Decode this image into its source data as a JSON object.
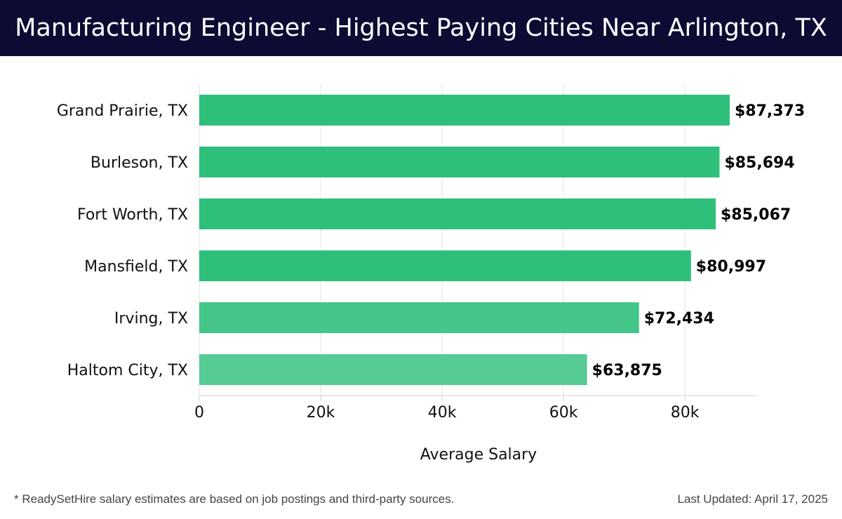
{
  "header": {
    "title": "Manufacturing Engineer - Highest Paying Cities Near Arlington, TX"
  },
  "chart_data": {
    "type": "bar",
    "orientation": "horizontal",
    "title": "Manufacturing Engineer - Highest Paying Cities Near Arlington, TX",
    "categories": [
      "Grand Prairie, TX",
      "Burleson, TX",
      "Fort Worth, TX",
      "Mansfield, TX",
      "Irving, TX",
      "Haltom City, TX"
    ],
    "values": [
      87373,
      85694,
      85067,
      80997,
      72434,
      63875
    ],
    "value_labels": [
      "$87,373",
      "$85,694",
      "$85,067",
      "$80,997",
      "$72,434",
      "$63,875"
    ],
    "bar_colors": [
      "#2ec07a",
      "#2ec07a",
      "#2ec07a",
      "#2ec07a",
      "#43c688",
      "#56cc94"
    ],
    "xlabel": "Average Salary",
    "ylabel": "",
    "xlim": [
      0,
      92000
    ],
    "xticks": [
      0,
      20000,
      40000,
      60000,
      80000
    ],
    "xtick_labels": [
      "0",
      "20k",
      "40k",
      "60k",
      "80k"
    ],
    "grid": true
  },
  "footer": {
    "note": "* ReadySetHire salary estimates are based on job postings and third-party sources.",
    "updated": "Last Updated: April 17, 2025"
  },
  "colors": {
    "header_bg": "#0b0b33",
    "grid": "#e3e3e3",
    "axis": "#d0d0d0"
  }
}
